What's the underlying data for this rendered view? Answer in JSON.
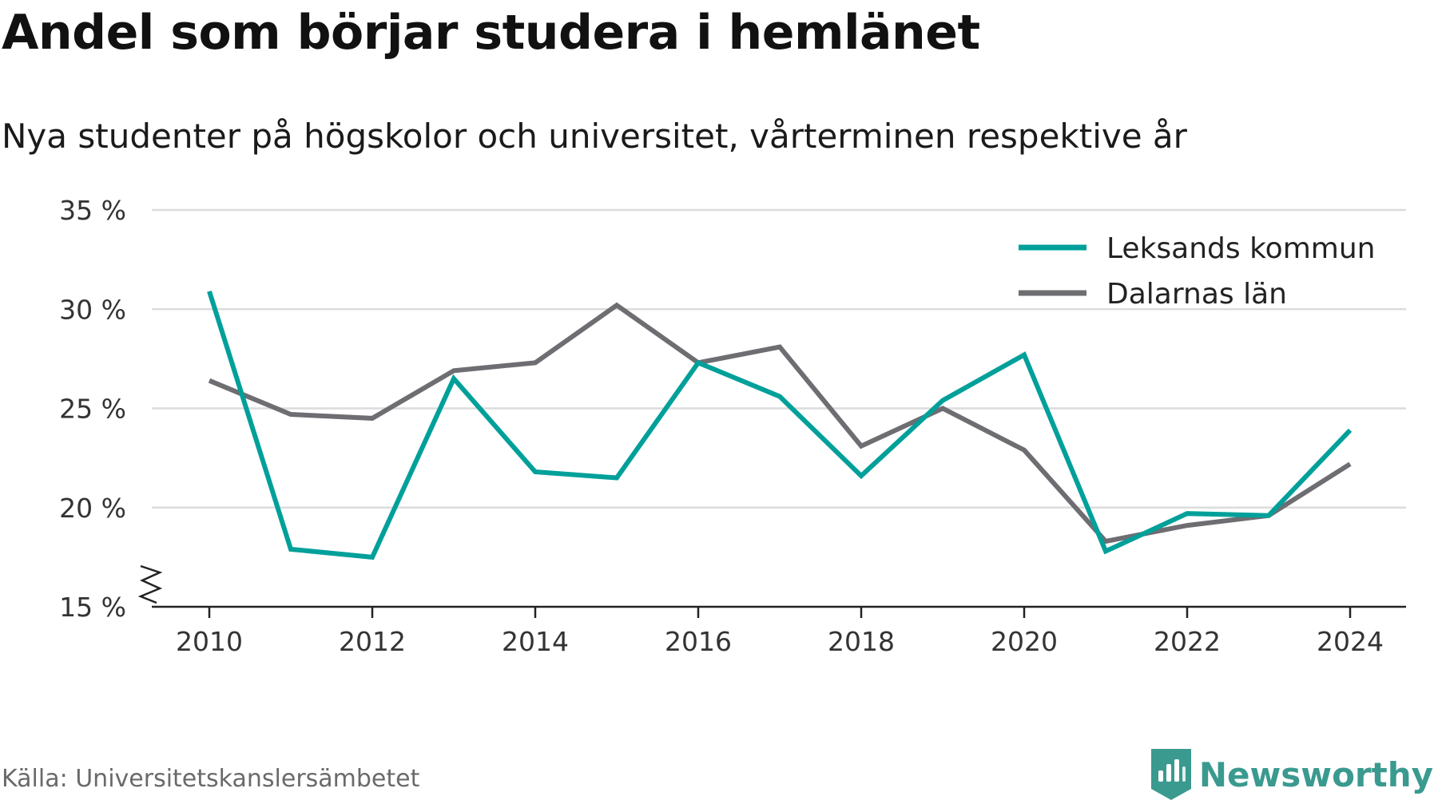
{
  "title": "Andel som börjar studera i hemlänet",
  "subtitle": "Nya studenter på högskolor och universitet, vårterminen respektive år",
  "source": "Källa: Universitetskanslersämbetet",
  "brand": {
    "name": "Newsworthy",
    "icon": "newsworthy-logo-icon",
    "color": "#3a9a8f"
  },
  "colors": {
    "leksand": "#00a09a",
    "dalarna": "#6e6d72",
    "grid": "#dcdcdc",
    "axis": "#222222"
  },
  "chart_data": {
    "type": "line",
    "x": [
      2010,
      2011,
      2012,
      2013,
      2014,
      2015,
      2016,
      2017,
      2018,
      2019,
      2020,
      2021,
      2022,
      2023,
      2024
    ],
    "xticks": [
      "2010",
      "2012",
      "2014",
      "2016",
      "2018",
      "2020",
      "2022",
      "2024"
    ],
    "yticks": [
      "15 %",
      "20 %",
      "25 %",
      "30 %",
      "35 %"
    ],
    "ylim": [
      15,
      35
    ],
    "y_axis_break": true,
    "grid": true,
    "legend_position": "top-right",
    "series": [
      {
        "name": "Leksands kommun",
        "color": "#00a09a",
        "values": [
          30.9,
          17.9,
          17.5,
          26.5,
          21.8,
          21.5,
          27.3,
          25.6,
          21.6,
          25.4,
          27.7,
          17.8,
          19.7,
          19.6,
          23.9
        ]
      },
      {
        "name": "Dalarnas län",
        "color": "#6e6d72",
        "values": [
          26.4,
          24.7,
          24.5,
          26.9,
          27.3,
          30.2,
          27.3,
          28.1,
          23.1,
          25.0,
          22.9,
          18.3,
          19.1,
          19.6,
          22.2
        ]
      }
    ]
  }
}
